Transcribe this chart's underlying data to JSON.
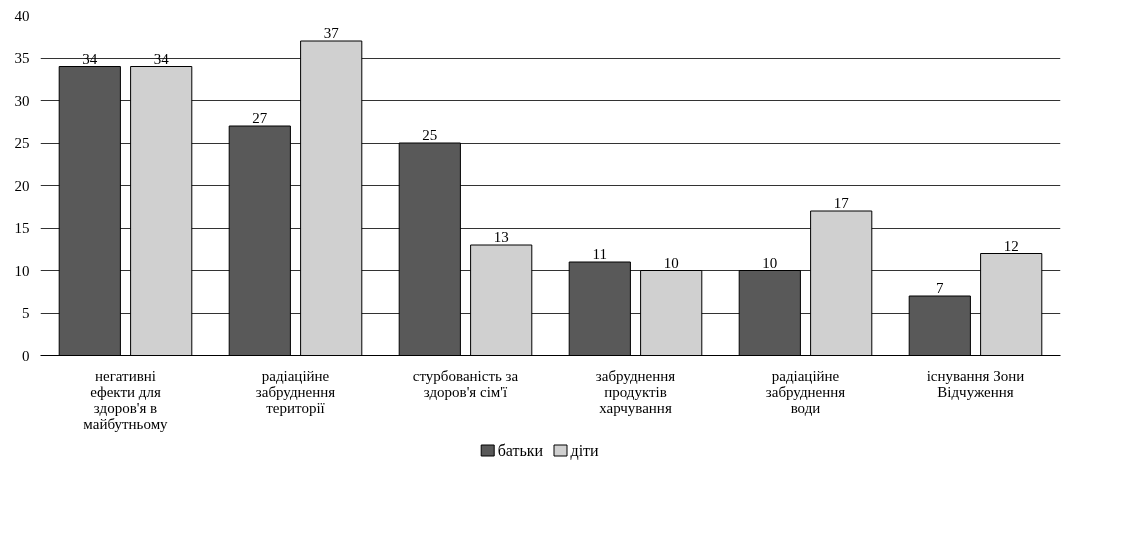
{
  "chart_data": {
    "type": "bar",
    "categories": [
      "негативні\nефекти для\nздоров'я в\nмайбутньому",
      "радіаційне\nзабруднення\nтериторії",
      "стурбованість за\nздоров'я сім'ї",
      "забруднення\nпродуктів\nхарчування",
      "радіаційне\nзабруднення\nводи",
      "існування Зони\nВідчуження"
    ],
    "series": [
      {
        "name": "батьки",
        "color": "#595959",
        "values": [
          34,
          27,
          25,
          11,
          10,
          7
        ]
      },
      {
        "name": "діти",
        "color": "#d0d0d0",
        "values": [
          34,
          37,
          13,
          10,
          17,
          12
        ]
      }
    ],
    "ylim": [
      0,
      40
    ],
    "yticks": [
      0,
      5,
      10,
      15,
      20,
      25,
      30,
      35,
      40
    ],
    "grid": "y",
    "legend": "bottom",
    "data_labels": true
  }
}
